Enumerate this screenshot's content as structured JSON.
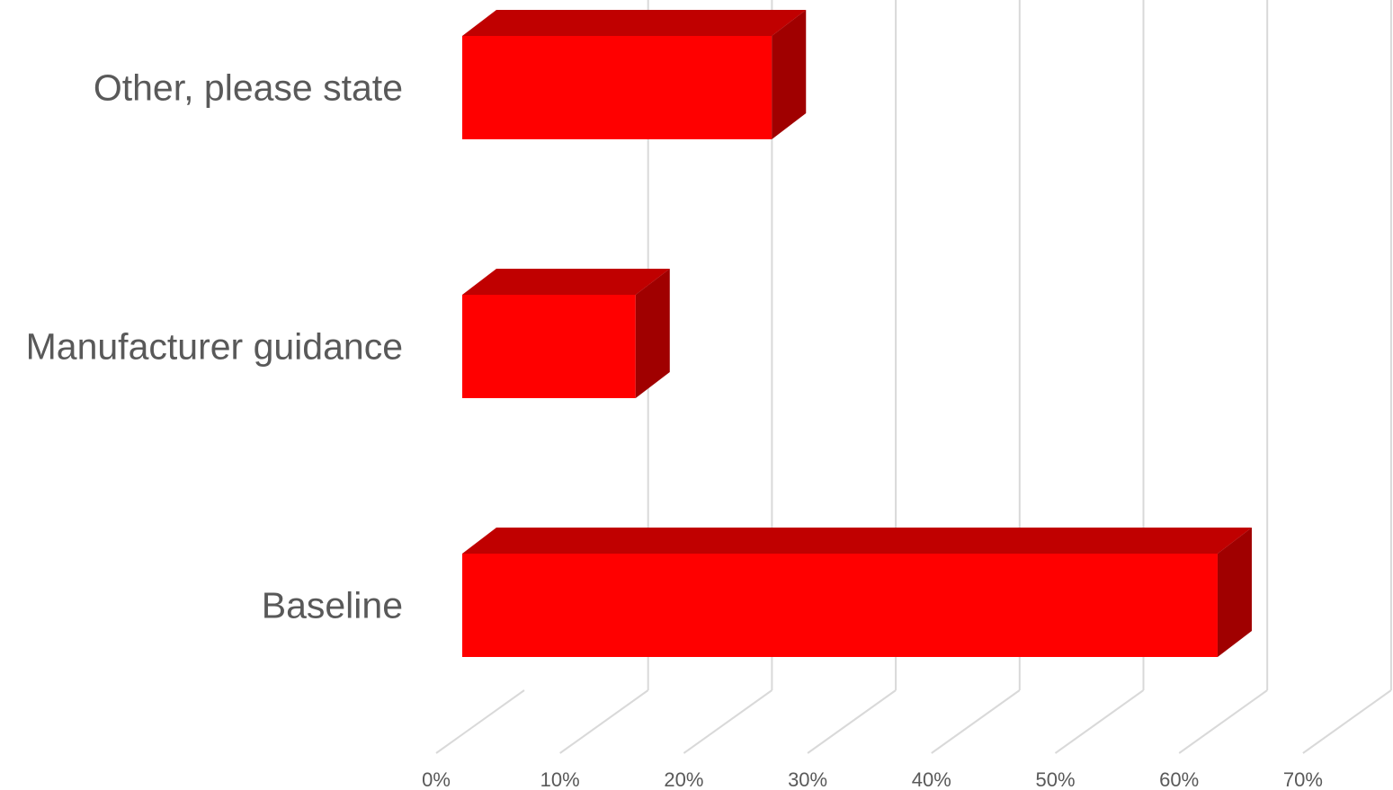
{
  "chart_data": {
    "type": "bar",
    "orientation": "horizontal",
    "style": "3d",
    "categories": [
      "Other, please state",
      "Manufacturer guidance",
      "Baseline"
    ],
    "values": [
      25,
      14,
      61
    ],
    "value_unit": "%",
    "xlim": [
      0,
      70
    ],
    "x_ticks": [
      0,
      10,
      20,
      30,
      40,
      50,
      60,
      70
    ],
    "x_tick_labels": [
      "0%",
      "10%",
      "20%",
      "30%",
      "40%",
      "50%",
      "60%",
      "70%"
    ],
    "grid": true,
    "legend": "none",
    "colors": {
      "bar_front": "#ff0000",
      "bar_top": "#c00000",
      "bar_side": "#a00000",
      "grid": "#d9d9d9",
      "text": "#595959"
    }
  }
}
